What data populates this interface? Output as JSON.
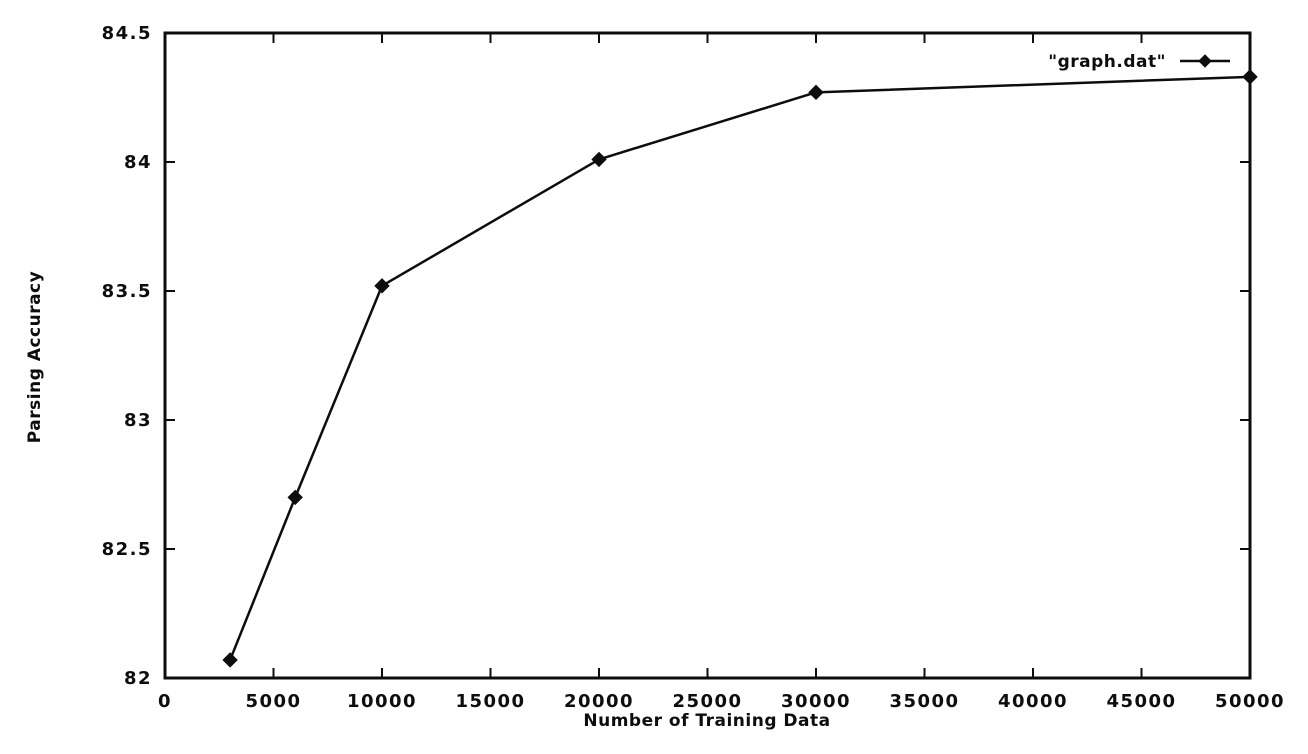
{
  "colors": {
    "ink": "#0d0d0d",
    "background": "#ffffff"
  },
  "chart_data": {
    "type": "line",
    "title": "",
    "xlabel": "Number of Training Data",
    "ylabel": "Parsing Accuracy",
    "xlim": [
      0,
      50000
    ],
    "ylim": [
      82,
      84.5
    ],
    "x_ticks": [
      0,
      5000,
      10000,
      15000,
      20000,
      25000,
      30000,
      35000,
      40000,
      45000,
      50000
    ],
    "y_ticks": [
      82,
      82.5,
      83,
      83.5,
      84,
      84.5
    ],
    "grid": false,
    "legend_position": "top-right-inside",
    "marker": "diamond",
    "series": [
      {
        "name": "\"graph.dat\"",
        "points": [
          [
            3000,
            82.07
          ],
          [
            6000,
            82.7
          ],
          [
            10000,
            83.52
          ],
          [
            20000,
            84.01
          ],
          [
            30000,
            84.27
          ],
          [
            50000,
            84.33
          ]
        ]
      }
    ]
  }
}
